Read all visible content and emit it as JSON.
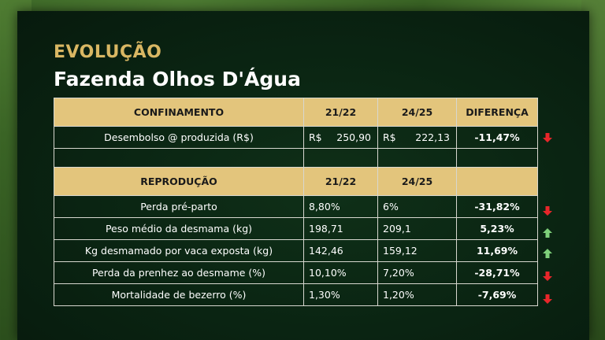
{
  "kicker": "EVOLUÇÃO",
  "title": "Fazenda Olhos D'Água",
  "confinamento": {
    "header": {
      "label": "CONFINAMENTO",
      "col1": "21/22",
      "col2": "24/25",
      "col3": "DIFERENÇA"
    },
    "rows": [
      {
        "label": "Desembolso @ produzida (R$)",
        "currency": "R$",
        "v1": "250,90",
        "v2": "222,13",
        "diff": "-11,47%",
        "trend": "down"
      }
    ]
  },
  "reproducao": {
    "header": {
      "label": "REPRODUÇÃO",
      "col1": "21/22",
      "col2": "24/25",
      "col3": ""
    },
    "rows": [
      {
        "label": "Perda pré-parto",
        "v1": "8,80%",
        "v2": "6%",
        "diff": "-31,82%",
        "trend": "down"
      },
      {
        "label": "Peso médio da desmama (kg)",
        "v1": "198,71",
        "v2": "209,1",
        "diff": "5,23%",
        "trend": "up"
      },
      {
        "label": "Kg desmamado por vaca exposta (kg)",
        "v1": "142,46",
        "v2": "159,12",
        "diff": "11,69%",
        "trend": "up"
      },
      {
        "label": "Perda da prenhez ao desmame (%)",
        "v1": "10,10%",
        "v2": "7,20%",
        "diff": "-28,71%",
        "trend": "down"
      },
      {
        "label": "Mortalidade de bezerro (%)",
        "v1": "1,30%",
        "v2": "1,20%",
        "diff": "-7,69%",
        "trend": "down"
      }
    ]
  },
  "colors": {
    "gold": "#e3c57c",
    "kicker": "#d9b763",
    "up": "#7ed07a",
    "down": "#e8262a",
    "background": "#0a2412"
  },
  "icons": {
    "up": "arrow-up-icon",
    "down": "arrow-down-icon"
  }
}
